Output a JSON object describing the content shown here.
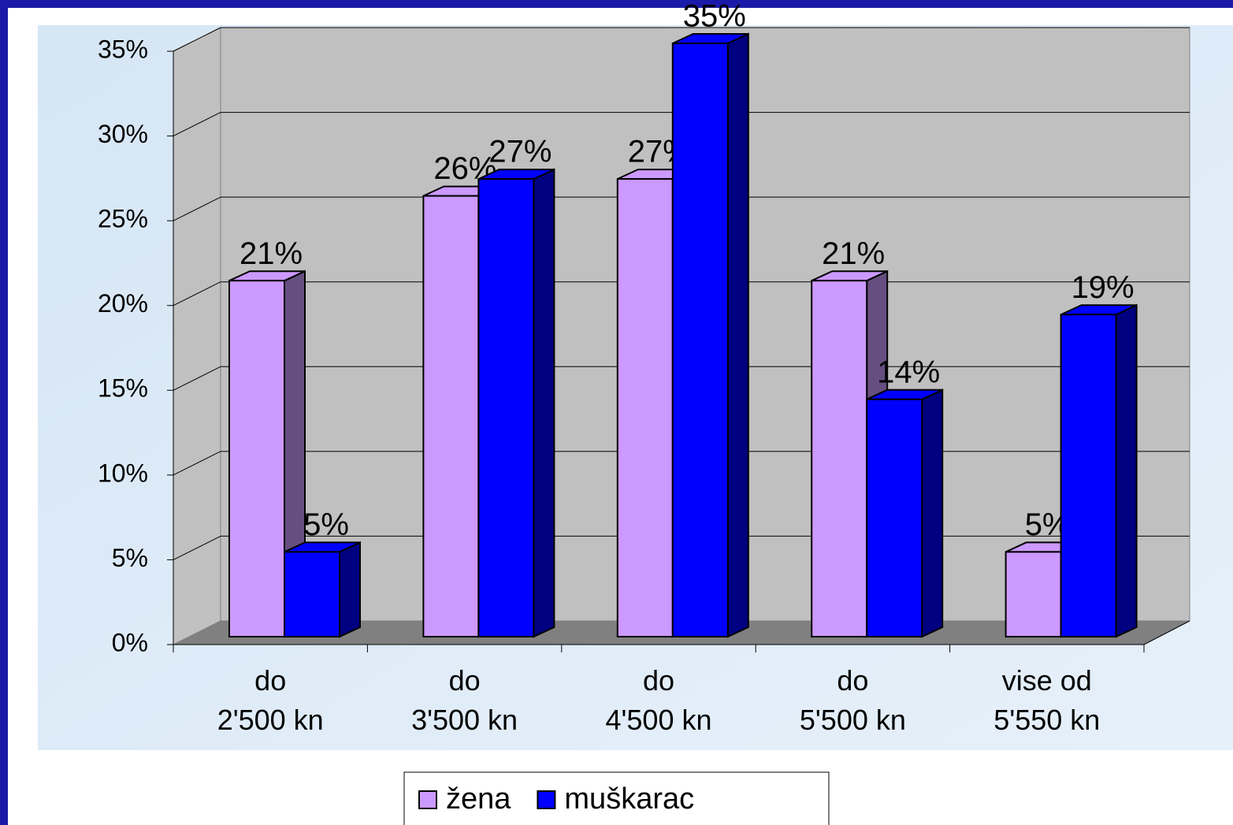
{
  "chart_data": {
    "type": "bar3d",
    "categories": [
      "do 2'500 kn",
      "do 3'500 kn",
      "do 4'500 kn",
      "do 5'500 kn",
      "vise od 5'550 kn"
    ],
    "series": [
      {
        "name": "žena",
        "color": "#cc99ff",
        "side": "#664e80",
        "values": [
          21,
          26,
          27,
          21,
          5
        ],
        "value_labels": [
          "21%",
          "26%",
          "27%",
          "21%",
          "5%"
        ]
      },
      {
        "name": "muškarac",
        "color": "#0000ff",
        "side": "#000080",
        "values": [
          5,
          27,
          35,
          14,
          19
        ],
        "value_labels": [
          "5%",
          "27%",
          "35%",
          "14%",
          "19%"
        ]
      }
    ],
    "ylim": [
      0,
      35
    ],
    "yticks": [
      {
        "value": 0,
        "label": "0%"
      },
      {
        "value": 5,
        "label": "5%"
      },
      {
        "value": 10,
        "label": "10%"
      },
      {
        "value": 15,
        "label": "15%"
      },
      {
        "value": 20,
        "label": "20%"
      },
      {
        "value": 25,
        "label": "25%"
      },
      {
        "value": 30,
        "label": "30%"
      },
      {
        "value": 35,
        "label": "35%"
      }
    ],
    "grid": true,
    "legend": "bottom"
  }
}
